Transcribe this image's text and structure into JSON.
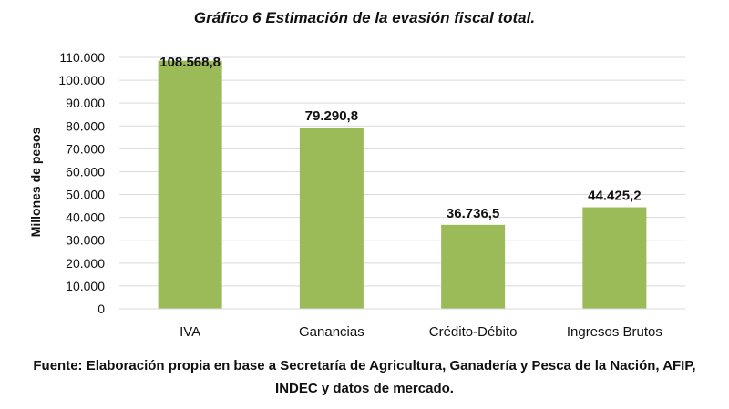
{
  "chart_data": {
    "type": "bar",
    "title": "Gráfico 6 Estimación de la evasión fiscal total.",
    "ylabel": "Millones de pesos",
    "xlabel": "",
    "categories": [
      "IVA",
      "Ganancias",
      "Crédito-Débito",
      "Ingresos Brutos"
    ],
    "values": [
      108568.8,
      79290.8,
      36736.5,
      44425.2
    ],
    "value_labels": [
      "108.568,8",
      "79.290,8",
      "36.736,5",
      "44.425,2"
    ],
    "ylim": [
      0,
      110000
    ],
    "yticks": [
      0,
      10000,
      20000,
      30000,
      40000,
      50000,
      60000,
      70000,
      80000,
      90000,
      100000,
      110000
    ],
    "ytick_labels": [
      "0",
      "10.000",
      "20.000",
      "30.000",
      "40.000",
      "50.000",
      "60.000",
      "70.000",
      "80.000",
      "90.000",
      "100.000",
      "110.000"
    ],
    "grid": true,
    "bar_color": "#9bbb59",
    "grid_color": "#d9d9d9"
  },
  "source_note": "Fuente: Elaboración propia en base a Secretaría de Agricultura, Ganadería y Pesca de la Nación, AFIP, INDEC y datos de mercado."
}
